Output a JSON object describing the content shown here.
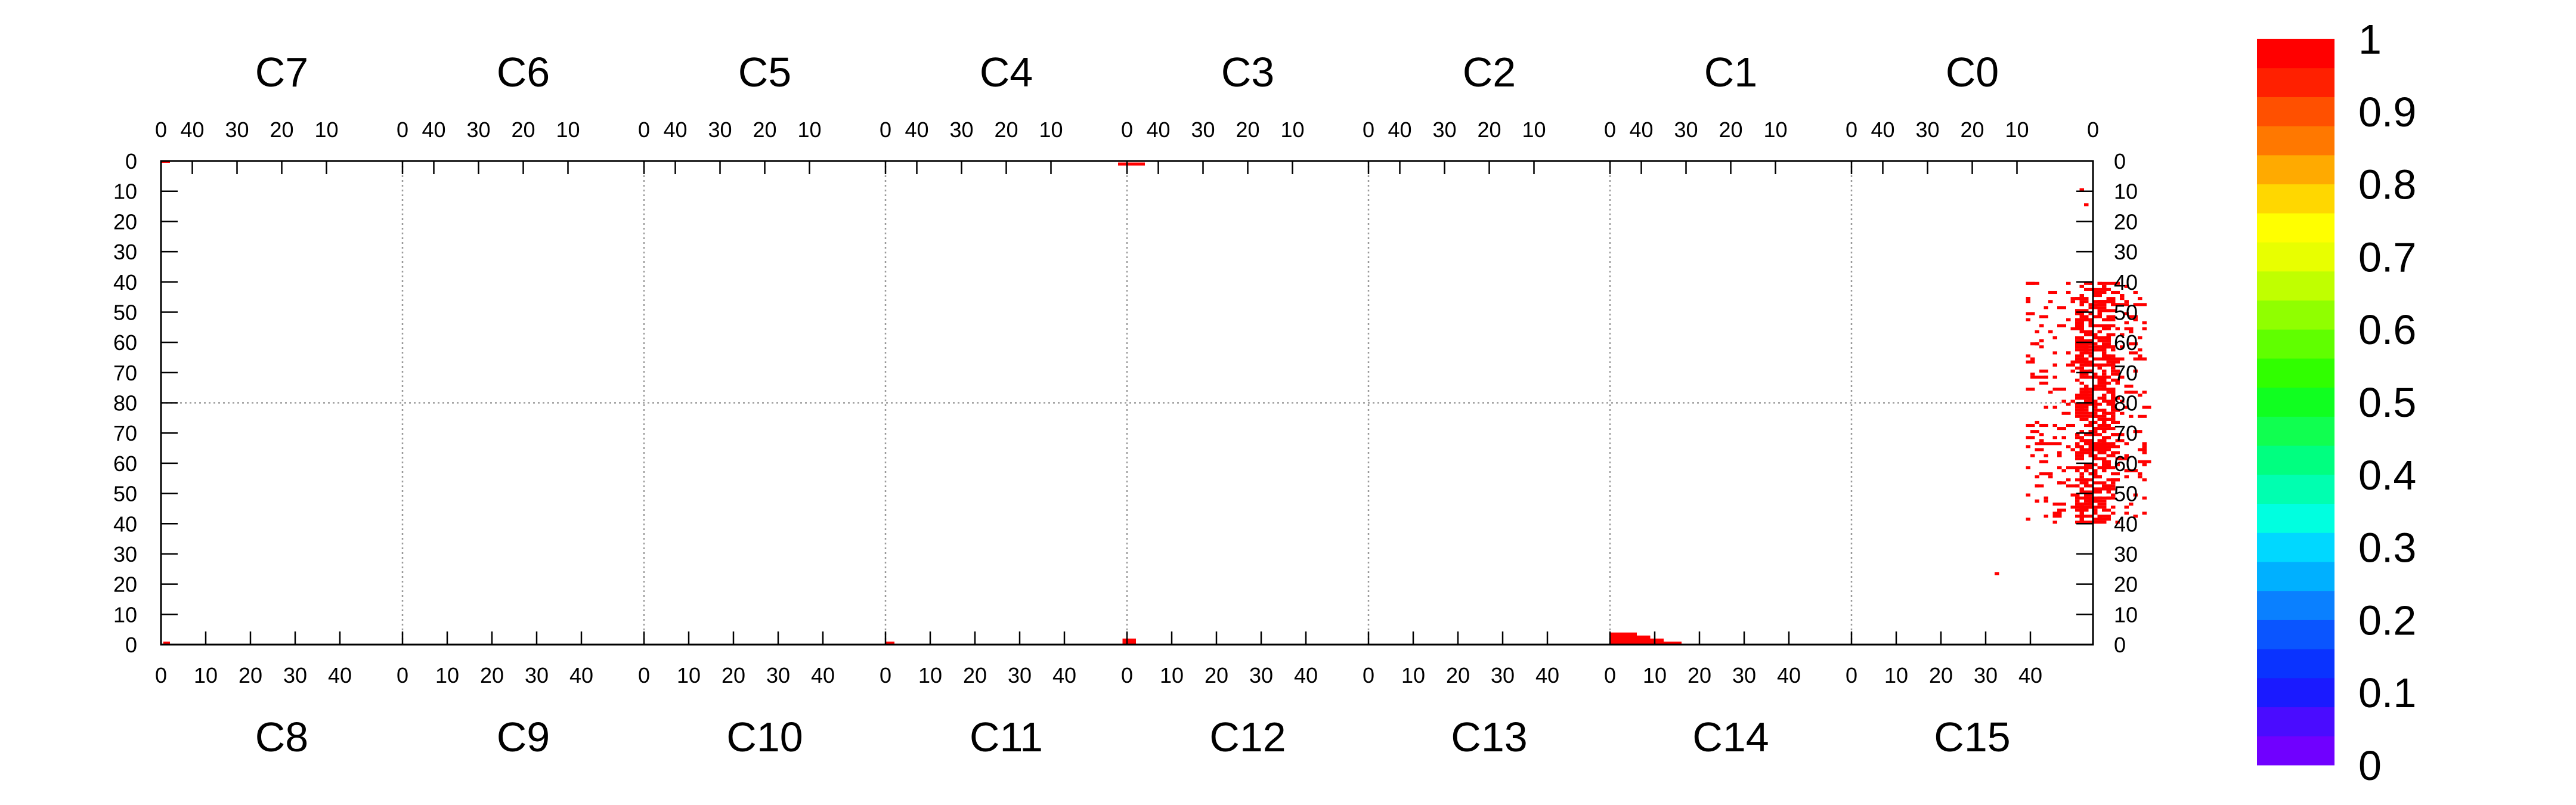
{
  "chart_data": {
    "type": "heatmap",
    "title": "",
    "xlabel": "",
    "ylabel": "",
    "top_channel_labels": [
      "C7",
      "C6",
      "C5",
      "C4",
      "C3",
      "C2",
      "C1",
      "C0"
    ],
    "bottom_channel_labels": [
      "C8",
      "C9",
      "C10",
      "C11",
      "C12",
      "C13",
      "C14",
      "C15"
    ],
    "top_tick_labels": [
      "40",
      "30",
      "20",
      "10",
      "0"
    ],
    "bottom_tick_labels": [
      "0",
      "10",
      "20",
      "30",
      "40"
    ],
    "final_top_tick_label": "0",
    "y_tick_labels": [
      "0",
      "10",
      "20",
      "30",
      "40",
      "50",
      "60",
      "70",
      "80",
      "70",
      "60",
      "50",
      "40",
      "30",
      "20",
      "10",
      "0"
    ],
    "x_per_channel_range": [
      0,
      54
    ],
    "y_range": [
      0,
      160
    ],
    "color_scale": {
      "min": 0,
      "max": 1,
      "tick_labels": [
        "1",
        "0.9",
        "0.8",
        "0.7",
        "0.6",
        "0.5",
        "0.4",
        "0.3",
        "0.2",
        "0.1",
        "0"
      ],
      "colors": [
        "#7000ff",
        "#4a0cff",
        "#1a1aff",
        "#0a33ff",
        "#0a55ff",
        "#0a80ff",
        "#00b0ff",
        "#00d8ff",
        "#00ffe0",
        "#00ffb0",
        "#00ff80",
        "#10ff50",
        "#10ff20",
        "#30ff00",
        "#60ff00",
        "#90ff00",
        "#c0ff00",
        "#e8ff00",
        "#ffff00",
        "#ffd700",
        "#ffaa00",
        "#ff7800",
        "#ff5000",
        "#ff2000",
        "#ff0000"
      ]
    },
    "hit_color": "#ff0000",
    "grid_color": "#999999",
    "hit_bars": [
      {
        "x0": 0,
        "x1": 2,
        "y0": 159.5,
        "y1": 160
      },
      {
        "x0": 0.5,
        "x1": 2,
        "y0": 0,
        "y1": 1
      },
      {
        "x0": 162,
        "x1": 164,
        "y0": 0,
        "y1": 1
      },
      {
        "x0": 215,
        "x1": 218,
        "y0": 0,
        "y1": 2
      },
      {
        "x0": 214,
        "x1": 220,
        "y0": 158.5,
        "y1": 159.5
      },
      {
        "x0": 324,
        "x1": 330,
        "y0": 0,
        "y1": 4
      },
      {
        "x0": 330,
        "x1": 333,
        "y0": 0,
        "y1": 3
      },
      {
        "x0": 333,
        "x1": 336,
        "y0": 0,
        "y1": 2
      },
      {
        "x0": 336,
        "x1": 340,
        "y0": 0,
        "y1": 1
      },
      {
        "x0": 429,
        "x1": 430,
        "y0": 150,
        "y1": 151
      },
      {
        "x0": 430,
        "x1": 431,
        "y0": 145,
        "y1": 146
      },
      {
        "x0": 410,
        "x1": 411,
        "y0": 23,
        "y1": 24
      }
    ],
    "hit_cluster": {
      "x_min": 417,
      "x_max": 444,
      "y_min": 40,
      "y_max": 120,
      "core_x_min": 428,
      "core_x_max": 437,
      "seed": 7,
      "count": 780
    }
  }
}
